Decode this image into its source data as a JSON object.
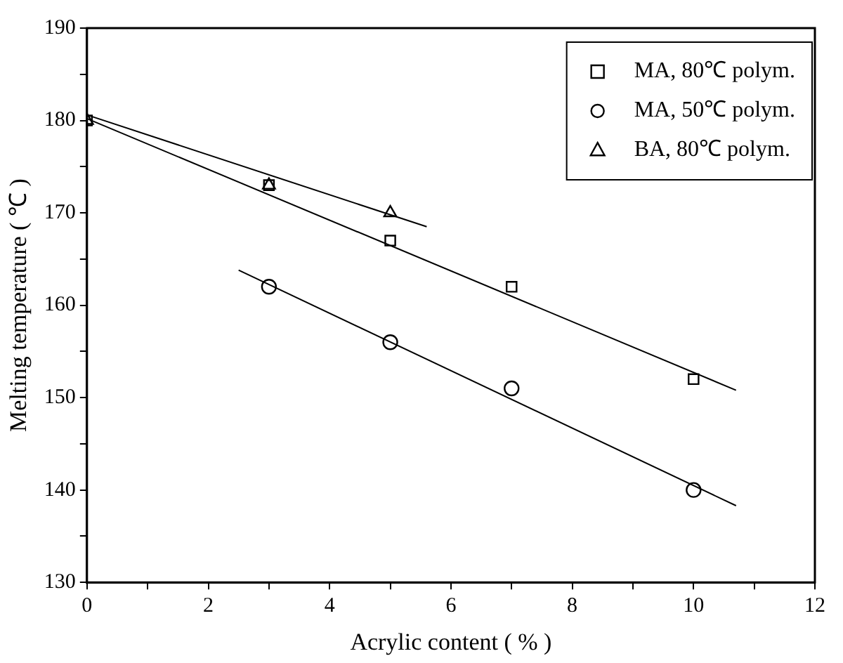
{
  "chart_data": {
    "type": "scatter",
    "xlabel": "Acrylic content ( % )",
    "ylabel": "Melting temperature ( ℃ )",
    "xlim": [
      0,
      12
    ],
    "xticks": [
      0,
      {
        "value": 1,
        "label": null
      },
      2,
      {
        "value": 3,
        "label": null
      },
      4,
      {
        "value": 5,
        "label": null
      },
      6,
      {
        "value": 7,
        "label": null
      },
      8,
      {
        "value": 9,
        "label": null
      },
      10,
      {
        "value": 11,
        "label": null
      },
      12
    ],
    "ylim": [
      130,
      190
    ],
    "yticks": [
      130,
      {
        "value": 135,
        "label": null
      },
      140,
      {
        "value": 145,
        "label": null
      },
      150,
      {
        "value": 155,
        "label": null
      },
      160,
      {
        "value": 165,
        "label": null
      },
      170,
      {
        "value": 175,
        "label": null
      },
      180,
      {
        "value": 185,
        "label": null
      },
      190
    ],
    "grid": false,
    "legend": "top right",
    "series": [
      {
        "name": "MA, 80℃ polym.",
        "marker": "square",
        "color": "#000000",
        "x": [
          0,
          3,
          5,
          7,
          10
        ],
        "values": [
          180,
          173,
          167,
          162,
          152
        ]
      },
      {
        "name": "MA, 50℃ polym.",
        "marker": "circle",
        "color": "#000000",
        "x": [
          3,
          5,
          7,
          10
        ],
        "values": [
          162,
          156,
          151,
          140
        ]
      },
      {
        "name": "BA, 80℃ polym.",
        "marker": "triangle",
        "color": "#000000",
        "x": [
          0,
          3,
          5
        ],
        "values": [
          180,
          173,
          170
        ]
      },
      {
        "type": "line",
        "marker": "none",
        "line_style": "solid",
        "color": "#000000",
        "x": [
          0,
          10.7
        ],
        "values": [
          180.2,
          150.8
        ]
      },
      {
        "type": "line",
        "marker": "none",
        "line_style": "solid",
        "color": "#000000",
        "x": [
          2.5,
          10.7
        ],
        "values": [
          163.8,
          138.3
        ]
      },
      {
        "type": "line",
        "marker": "none",
        "line_style": "solid",
        "color": "#000000",
        "x": [
          0,
          5.6
        ],
        "values": [
          180.6,
          168.5
        ]
      }
    ]
  }
}
